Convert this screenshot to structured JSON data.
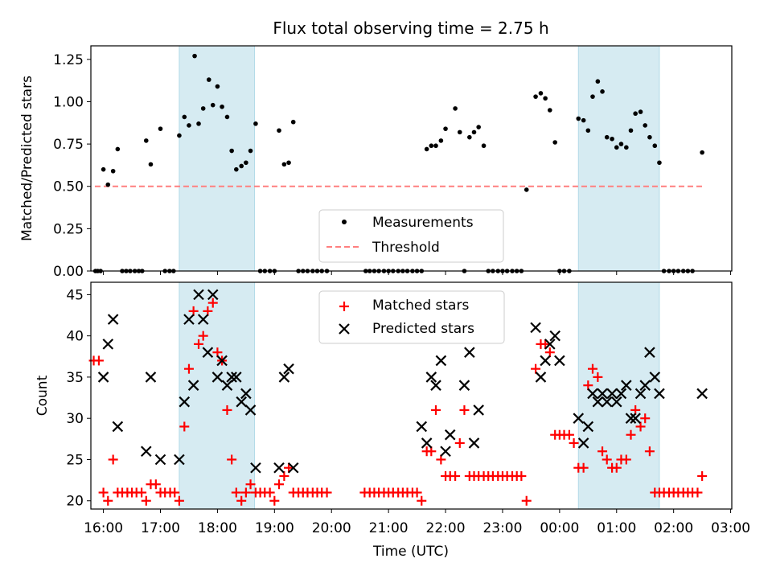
{
  "chart_data": [
    {
      "type": "scatter",
      "title": "Flux total observing time = 2.75 h",
      "xlabel": "",
      "ylabel": "Matched/Predicted stars",
      "ylim": [
        0,
        1.33
      ],
      "yticks": [
        "0.00",
        "0.25",
        "0.50",
        "0.75",
        "1.00",
        "1.25"
      ],
      "ytick_values": [
        0,
        0.25,
        0.5,
        0.75,
        1.0,
        1.25
      ],
      "xlim": [
        15.78,
        27.02
      ],
      "legend": {
        "placement": "lower-center",
        "entries": [
          "Measurements",
          "Threshold"
        ]
      },
      "threshold": {
        "name": "Threshold",
        "value": 0.5,
        "x": [
          15.85,
          26.5
        ],
        "color": "#ff7f7f"
      },
      "shaded_regions": [
        [
          17.33,
          18.65
        ],
        [
          24.33,
          25.75
        ]
      ],
      "series": [
        {
          "name": "Measurements",
          "color": "#000000",
          "x": [
            15.86,
            15.9,
            15.95,
            16.0,
            16.08,
            16.17,
            16.25,
            16.33,
            16.4,
            16.47,
            16.55,
            16.62,
            16.68,
            16.75,
            16.83,
            17.0,
            17.08,
            17.16,
            17.23,
            17.33,
            17.42,
            17.5,
            17.6,
            17.67,
            17.75,
            17.85,
            17.92,
            18.0,
            18.08,
            18.17,
            18.25,
            18.33,
            18.42,
            18.5,
            18.58,
            18.67,
            18.75,
            18.83,
            18.92,
            19.0,
            19.08,
            19.17,
            19.25,
            19.33,
            19.42,
            19.5,
            19.58,
            19.67,
            19.75,
            19.83,
            19.92,
            20.6,
            20.67,
            20.75,
            20.83,
            20.92,
            21.0,
            21.08,
            21.17,
            21.25,
            21.33,
            21.42,
            21.5,
            21.58,
            21.67,
            21.75,
            21.83,
            21.92,
            22.0,
            22.17,
            22.25,
            22.33,
            22.42,
            22.5,
            22.58,
            22.67,
            22.75,
            22.83,
            22.92,
            23.0,
            23.08,
            23.17,
            23.25,
            23.33,
            23.42,
            23.58,
            23.67,
            23.75,
            23.83,
            23.92,
            24.0,
            24.08,
            24.17,
            24.33,
            24.42,
            24.5,
            24.58,
            24.67,
            24.75,
            24.83,
            24.92,
            25.0,
            25.08,
            25.17,
            25.25,
            25.33,
            25.42,
            25.5,
            25.58,
            25.67,
            25.75,
            25.83,
            25.92,
            26.0,
            26.08,
            26.17,
            26.25,
            26.33,
            26.5
          ],
          "y": [
            0,
            0,
            0,
            0.6,
            0.51,
            0.59,
            0.72,
            0,
            0,
            0,
            0,
            0,
            0,
            0.77,
            0.63,
            0.84,
            0,
            0,
            0,
            0.8,
            0.91,
            0.86,
            1.27,
            0.87,
            0.96,
            1.13,
            0.98,
            1.09,
            0.97,
            0.91,
            0.71,
            0.6,
            0.62,
            0.64,
            0.71,
            0.87,
            0,
            0,
            0,
            0,
            0.83,
            0.63,
            0.64,
            0.88,
            0,
            0,
            0,
            0,
            0,
            0,
            0,
            0,
            0,
            0,
            0,
            0,
            0,
            0,
            0,
            0,
            0,
            0,
            0,
            0,
            0.72,
            0.74,
            0.74,
            0.77,
            0.84,
            0.96,
            0.82,
            0,
            0.79,
            0.82,
            0.85,
            0.74,
            0,
            0,
            0,
            0,
            0,
            0,
            0,
            0,
            0.48,
            1.03,
            1.05,
            1.02,
            0.95,
            0.76,
            0,
            0,
            0,
            0.9,
            0.89,
            0.83,
            1.03,
            1.12,
            1.06,
            0.79,
            0.78,
            0.73,
            0.75,
            0.73,
            0.83,
            0.93,
            0.94,
            0.86,
            0.79,
            0.74,
            0.64,
            0,
            0,
            0,
            0,
            0,
            0,
            0,
            0.7
          ]
        }
      ]
    },
    {
      "type": "scatter",
      "title": "",
      "xlabel": "Time (UTC)",
      "ylabel": "Count",
      "ylim": [
        19,
        46.5
      ],
      "yticks": [
        "20",
        "25",
        "30",
        "35",
        "40",
        "45"
      ],
      "ytick_values": [
        20,
        25,
        30,
        35,
        40,
        45
      ],
      "xlim": [
        15.78,
        27.02
      ],
      "xticks": [
        "16:00",
        "17:00",
        "18:00",
        "19:00",
        "20:00",
        "21:00",
        "22:00",
        "23:00",
        "00:00",
        "01:00",
        "02:00",
        "03:00"
      ],
      "xtick_values": [
        16,
        17,
        18,
        19,
        20,
        21,
        22,
        23,
        24,
        25,
        26,
        27
      ],
      "legend": {
        "placement": "top-center",
        "entries": [
          "Matched stars",
          "Predicted stars"
        ]
      },
      "shaded_regions": [
        [
          17.33,
          18.65
        ],
        [
          24.33,
          25.75
        ]
      ],
      "series": [
        {
          "name": "Matched stars",
          "color": "#ff0000",
          "marker": "+",
          "x": [
            15.83,
            15.92,
            16.0,
            16.08,
            16.17,
            16.25,
            16.33,
            16.42,
            16.5,
            16.58,
            16.67,
            16.75,
            16.83,
            16.92,
            17.0,
            17.08,
            17.17,
            17.25,
            17.33,
            17.42,
            17.5,
            17.58,
            17.67,
            17.75,
            17.83,
            17.92,
            18.0,
            18.08,
            18.17,
            18.25,
            18.33,
            18.42,
            18.5,
            18.58,
            18.67,
            18.75,
            18.83,
            18.92,
            19.0,
            19.08,
            19.17,
            19.25,
            19.33,
            19.42,
            19.5,
            19.58,
            19.67,
            19.75,
            19.83,
            19.92,
            20.58,
            20.67,
            20.75,
            20.83,
            20.92,
            21.0,
            21.08,
            21.17,
            21.25,
            21.33,
            21.42,
            21.5,
            21.58,
            21.67,
            21.75,
            21.83,
            21.92,
            22.0,
            22.08,
            22.17,
            22.25,
            22.33,
            22.42,
            22.5,
            22.58,
            22.67,
            22.75,
            22.83,
            22.92,
            23.0,
            23.08,
            23.17,
            23.25,
            23.33,
            23.42,
            23.58,
            23.67,
            23.75,
            23.83,
            23.92,
            24.0,
            24.08,
            24.17,
            24.25,
            24.33,
            24.42,
            24.5,
            24.58,
            24.67,
            24.75,
            24.83,
            24.92,
            25.0,
            25.08,
            25.17,
            25.25,
            25.33,
            25.42,
            25.5,
            25.58,
            25.67,
            25.75,
            25.83,
            25.92,
            26.0,
            26.08,
            26.17,
            26.25,
            26.33,
            26.42,
            26.5
          ],
          "y": [
            37,
            37,
            21,
            20,
            25,
            21,
            21,
            21,
            21,
            21,
            21,
            20,
            22,
            22,
            21,
            21,
            21,
            21,
            20,
            29,
            36,
            43,
            39,
            40,
            43,
            44,
            38,
            37,
            31,
            25,
            21,
            20,
            21,
            22,
            21,
            21,
            21,
            21,
            20,
            22,
            23,
            24,
            21,
            21,
            21,
            21,
            21,
            21,
            21,
            21,
            21,
            21,
            21,
            21,
            21,
            21,
            21,
            21,
            21,
            21,
            21,
            21,
            20,
            26,
            26,
            31,
            25,
            23,
            23,
            23,
            27,
            31,
            23,
            23,
            23,
            23,
            23,
            23,
            23,
            23,
            23,
            23,
            23,
            23,
            20,
            36,
            39,
            39,
            38,
            28,
            28,
            28,
            28,
            27,
            24,
            24,
            34,
            36,
            35,
            26,
            25,
            24,
            24,
            25,
            25,
            28,
            31,
            29,
            30,
            26,
            21,
            21,
            21,
            21,
            21,
            21,
            21,
            21,
            21,
            21,
            23
          ]
        },
        {
          "name": "Predicted stars",
          "color": "#000000",
          "marker": "x",
          "x": [
            16.0,
            16.08,
            16.17,
            16.25,
            16.75,
            16.83,
            17.0,
            17.33,
            17.42,
            17.5,
            17.58,
            17.67,
            17.75,
            17.83,
            17.92,
            18.0,
            18.08,
            18.17,
            18.25,
            18.33,
            18.42,
            18.5,
            18.58,
            18.67,
            19.08,
            19.17,
            19.25,
            19.33,
            21.58,
            21.67,
            21.75,
            21.83,
            21.92,
            22.0,
            22.08,
            22.33,
            22.42,
            22.5,
            22.58,
            23.58,
            23.67,
            23.75,
            23.83,
            23.92,
            24.0,
            24.33,
            24.42,
            24.5,
            24.58,
            24.67,
            24.75,
            24.83,
            24.92,
            25.0,
            25.08,
            25.17,
            25.25,
            25.33,
            25.42,
            25.5,
            25.58,
            25.67,
            25.75,
            26.5
          ],
          "y": [
            35,
            39,
            42,
            29,
            26,
            35,
            25,
            25,
            32,
            42,
            34,
            45,
            42,
            38,
            45,
            35,
            37,
            34,
            35,
            35,
            32,
            33,
            31,
            24,
            24,
            35,
            36,
            24,
            29,
            27,
            35,
            34,
            37,
            26,
            28,
            34,
            38,
            27,
            31,
            41,
            35,
            37,
            39,
            40,
            37,
            30,
            27,
            29,
            33,
            32,
            33,
            32,
            33,
            32,
            33,
            34,
            30,
            30,
            33,
            34,
            38,
            35,
            33,
            33
          ]
        }
      ]
    }
  ]
}
